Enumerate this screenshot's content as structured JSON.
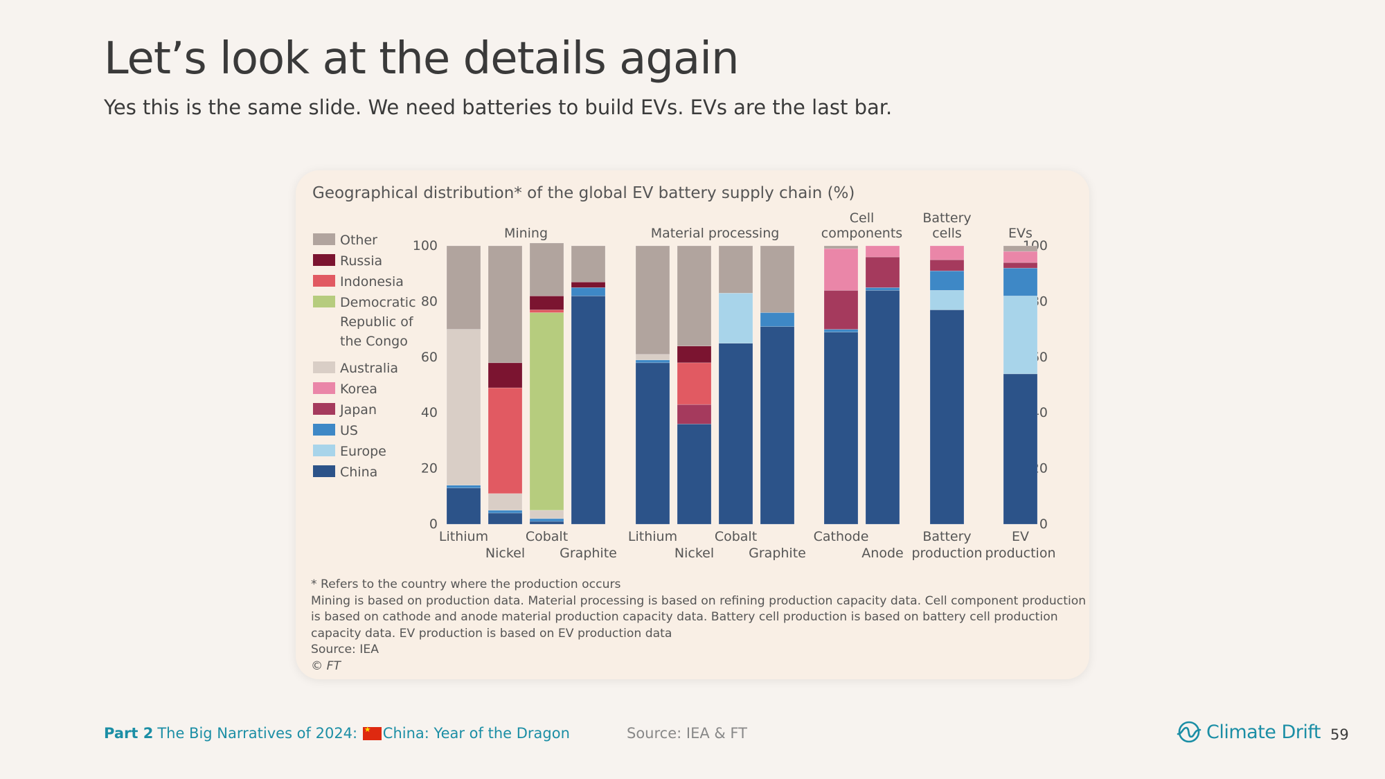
{
  "slide": {
    "title": "Let’s look at the details again",
    "subtitle": "Yes this is the same slide. We need batteries to build EVs. EVs are the last bar."
  },
  "chart_data": {
    "type": "bar",
    "stacked": true,
    "title": "Geographical distribution* of the global EV battery supply chain (%)",
    "ylim": [
      0,
      100
    ],
    "yticks": [
      0,
      20,
      40,
      60,
      80,
      100
    ],
    "grid": false,
    "legend_position": "left",
    "groups": [
      {
        "label": "Mining",
        "categories": [
          "Lithium",
          "Nickel",
          "Cobalt",
          "Graphite"
        ]
      },
      {
        "label": "Material processing",
        "categories": [
          "Lithium",
          "Nickel",
          "Cobalt",
          "Graphite"
        ]
      },
      {
        "label": "Cell components",
        "categories": [
          "Cathode",
          "Anode"
        ]
      },
      {
        "label": "Battery cells",
        "categories": [
          "Battery production"
        ]
      },
      {
        "label": "EVs",
        "categories": [
          "EV production"
        ]
      }
    ],
    "series": [
      {
        "name": "China",
        "color": "#2c5389",
        "values": [
          13,
          4,
          1,
          82,
          58,
          36,
          65,
          71,
          69,
          84,
          77,
          54
        ]
      },
      {
        "name": "Europe",
        "color": "#a8d4ea",
        "values": [
          0,
          0,
          0,
          0,
          0,
          0,
          18,
          0,
          0,
          0,
          7,
          28
        ]
      },
      {
        "name": "US",
        "color": "#3e88c6",
        "values": [
          1,
          1,
          1,
          3,
          1,
          0,
          0,
          5,
          1,
          1,
          7,
          10
        ]
      },
      {
        "name": "Japan",
        "color": "#a53a5d",
        "values": [
          0,
          0,
          0,
          0,
          0,
          7,
          0,
          0,
          14,
          11,
          4,
          2
        ]
      },
      {
        "name": "Korea",
        "color": "#ea86a8",
        "values": [
          0,
          0,
          0,
          0,
          0,
          0,
          0,
          0,
          15,
          4,
          5,
          4
        ]
      },
      {
        "name": "Australia",
        "color": "#d9cec6",
        "values": [
          56,
          6,
          3,
          0,
          2,
          0,
          0,
          0,
          0,
          0,
          0,
          0
        ]
      },
      {
        "name": "Democratic Republic of the Congo",
        "color": "#b6cc7e",
        "values": [
          0,
          0,
          71,
          0,
          0,
          0,
          0,
          0,
          0,
          0,
          0,
          0
        ]
      },
      {
        "name": "Indonesia",
        "color": "#e15a62",
        "values": [
          0,
          38,
          1,
          0,
          0,
          15,
          0,
          0,
          0,
          0,
          0,
          0
        ]
      },
      {
        "name": "Russia",
        "color": "#7b1430",
        "values": [
          0,
          9,
          5,
          2,
          0,
          6,
          0,
          0,
          0,
          0,
          0,
          0
        ]
      },
      {
        "name": "Other",
        "color": "#b1a49e",
        "values": [
          30,
          42,
          19,
          13,
          39,
          36,
          17,
          24,
          1,
          0,
          0,
          2
        ]
      }
    ],
    "legend_order": [
      "Other",
      "Russia",
      "Indonesia",
      "Democratic Republic of the Congo",
      "Australia",
      "Korea",
      "Japan",
      "US",
      "Europe",
      "China"
    ],
    "legend_lines": {
      "Democratic Republic of the Congo": [
        "Democratic",
        "Republic of",
        "the Congo"
      ]
    },
    "x_labels": [
      {
        "text": "Lithium",
        "bar": 0,
        "row": 1
      },
      {
        "text": "Nickel",
        "bar": 1,
        "row": 2
      },
      {
        "text": "Cobalt",
        "bar": 2,
        "row": 1
      },
      {
        "text": "Graphite",
        "bar": 3,
        "row": 2
      },
      {
        "text": "Lithium",
        "bar": 4,
        "row": 1
      },
      {
        "text": "Nickel",
        "bar": 5,
        "row": 2
      },
      {
        "text": "Cobalt",
        "bar": 6,
        "row": 1
      },
      {
        "text": "Graphite",
        "bar": 7,
        "row": 2
      },
      {
        "text": "Cathode",
        "bar": 8,
        "row": 1
      },
      {
        "text": "Anode",
        "bar": 9,
        "row": 2
      },
      {
        "text": "Battery",
        "bar": 10,
        "row": 1
      },
      {
        "text": "production",
        "bar": 10,
        "row": 2
      },
      {
        "text": "EV",
        "bar": 11,
        "row": 1
      },
      {
        "text": "production",
        "bar": 11,
        "row": 2
      }
    ],
    "group_header_lines": {
      "Cell components": [
        "Cell",
        "components"
      ],
      "Battery cells": [
        "Battery",
        "cells"
      ]
    },
    "notes": [
      "* Refers to the country where the production occurs",
      "Mining is based on production data. Material processing is based on refining production capacity data. Cell component production",
      "is based on cathode and anode material production capacity data. Battery cell production is based on battery cell production",
      "capacity data. EV production is based on EV production data",
      "Source: IEA",
      "© FT"
    ]
  },
  "footer": {
    "part_label": "Part 2",
    "section_text_before": "The Big Narratives of 2024: ",
    "section_text_after": "China: Year of the Dragon",
    "source": "Source: IEA & FT",
    "brand": "Climate Drift",
    "page_number": "59"
  }
}
